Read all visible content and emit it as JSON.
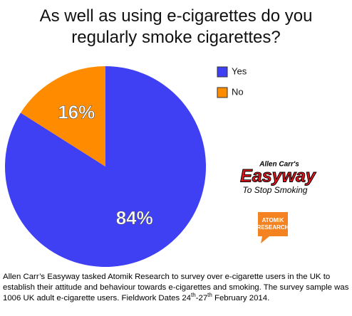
{
  "chart_data": {
    "type": "pie",
    "title": "As well as using e-cigarettes do you regularly smoke cigarettes?",
    "categories": [
      "Yes",
      "No"
    ],
    "values": [
      84,
      16
    ],
    "value_labels": [
      "84%",
      "16%"
    ],
    "colors": [
      "#3f3ff4",
      "#ff8c00"
    ],
    "legend": "top-right"
  },
  "logos": {
    "easyway": [
      "Allen Carr's",
      "Easyway",
      "To Stop Smoking"
    ],
    "atomik": [
      "ATOMIK",
      "RESEARCH"
    ]
  },
  "footnote": [
    "Allen Carr’s Easyway tasked Atomik Research to survey over e-cigarette users in the UK to establish their attitude and behaviour towards e-cigarettes and smoking. The survey sample was 1006 UK adult e-cigarette users. Fieldwork Dates 24",
    "th",
    "-27",
    "th",
    " February 2014."
  ]
}
